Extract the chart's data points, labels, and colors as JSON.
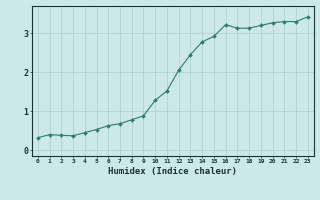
{
  "x": [
    0,
    1,
    2,
    3,
    4,
    5,
    6,
    7,
    8,
    9,
    10,
    11,
    12,
    13,
    14,
    15,
    16,
    17,
    18,
    19,
    20,
    21,
    22,
    23
  ],
  "y": [
    0.32,
    0.4,
    0.38,
    0.37,
    0.45,
    0.53,
    0.63,
    0.68,
    0.78,
    0.88,
    1.28,
    1.52,
    2.05,
    2.45,
    2.78,
    2.92,
    3.22,
    3.13,
    3.13,
    3.2,
    3.27,
    3.3,
    3.3,
    3.42
  ],
  "line_color": "#2e7d6e",
  "marker": "D",
  "marker_size": 2.0,
  "bg_color": "#cce8e8",
  "grid_color": "#aacfcf",
  "tick_color": "#1a3333",
  "xlabel": "Humidex (Indice chaleur)",
  "xlabel_fontsize": 6.5,
  "yticks": [
    0,
    1,
    2,
    3
  ],
  "ylim": [
    -0.15,
    3.7
  ],
  "xlim": [
    -0.5,
    23.5
  ]
}
